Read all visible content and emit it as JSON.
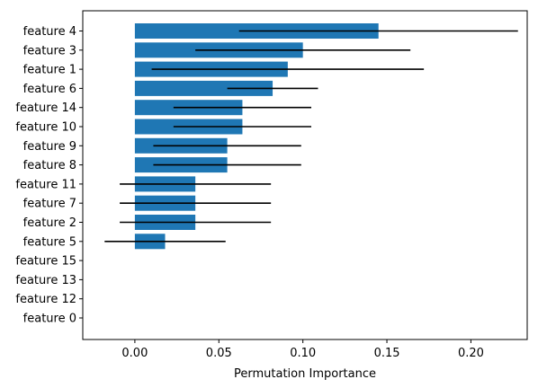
{
  "chart_data": {
    "type": "bar",
    "orientation": "horizontal",
    "title": "",
    "xlabel": "Permutation Importance",
    "ylabel": "",
    "xlim": [
      -0.031,
      0.2335
    ],
    "xticks": [
      0.0,
      0.05,
      0.1,
      0.15,
      0.2
    ],
    "xtick_labels": [
      "0.00",
      "0.05",
      "0.10",
      "0.15",
      "0.20"
    ],
    "grid": false,
    "bar_color": "#1f77b4",
    "error_bar_color": "#000000",
    "categories": [
      "feature 4",
      "feature 3",
      "feature 1",
      "feature 6",
      "feature 14",
      "feature 10",
      "feature 9",
      "feature 8",
      "feature 11",
      "feature 7",
      "feature 2",
      "feature 5",
      "feature 15",
      "feature 13",
      "feature 12",
      "feature 0"
    ],
    "values": [
      0.145,
      0.1,
      0.091,
      0.082,
      0.064,
      0.064,
      0.055,
      0.055,
      0.036,
      0.036,
      0.036,
      0.018,
      0.0,
      0.0,
      0.0,
      0.0
    ],
    "errors": [
      0.083,
      0.064,
      0.081,
      0.027,
      0.041,
      0.041,
      0.044,
      0.044,
      0.045,
      0.045,
      0.045,
      0.036,
      0.0,
      0.0,
      0.0,
      0.0
    ]
  }
}
